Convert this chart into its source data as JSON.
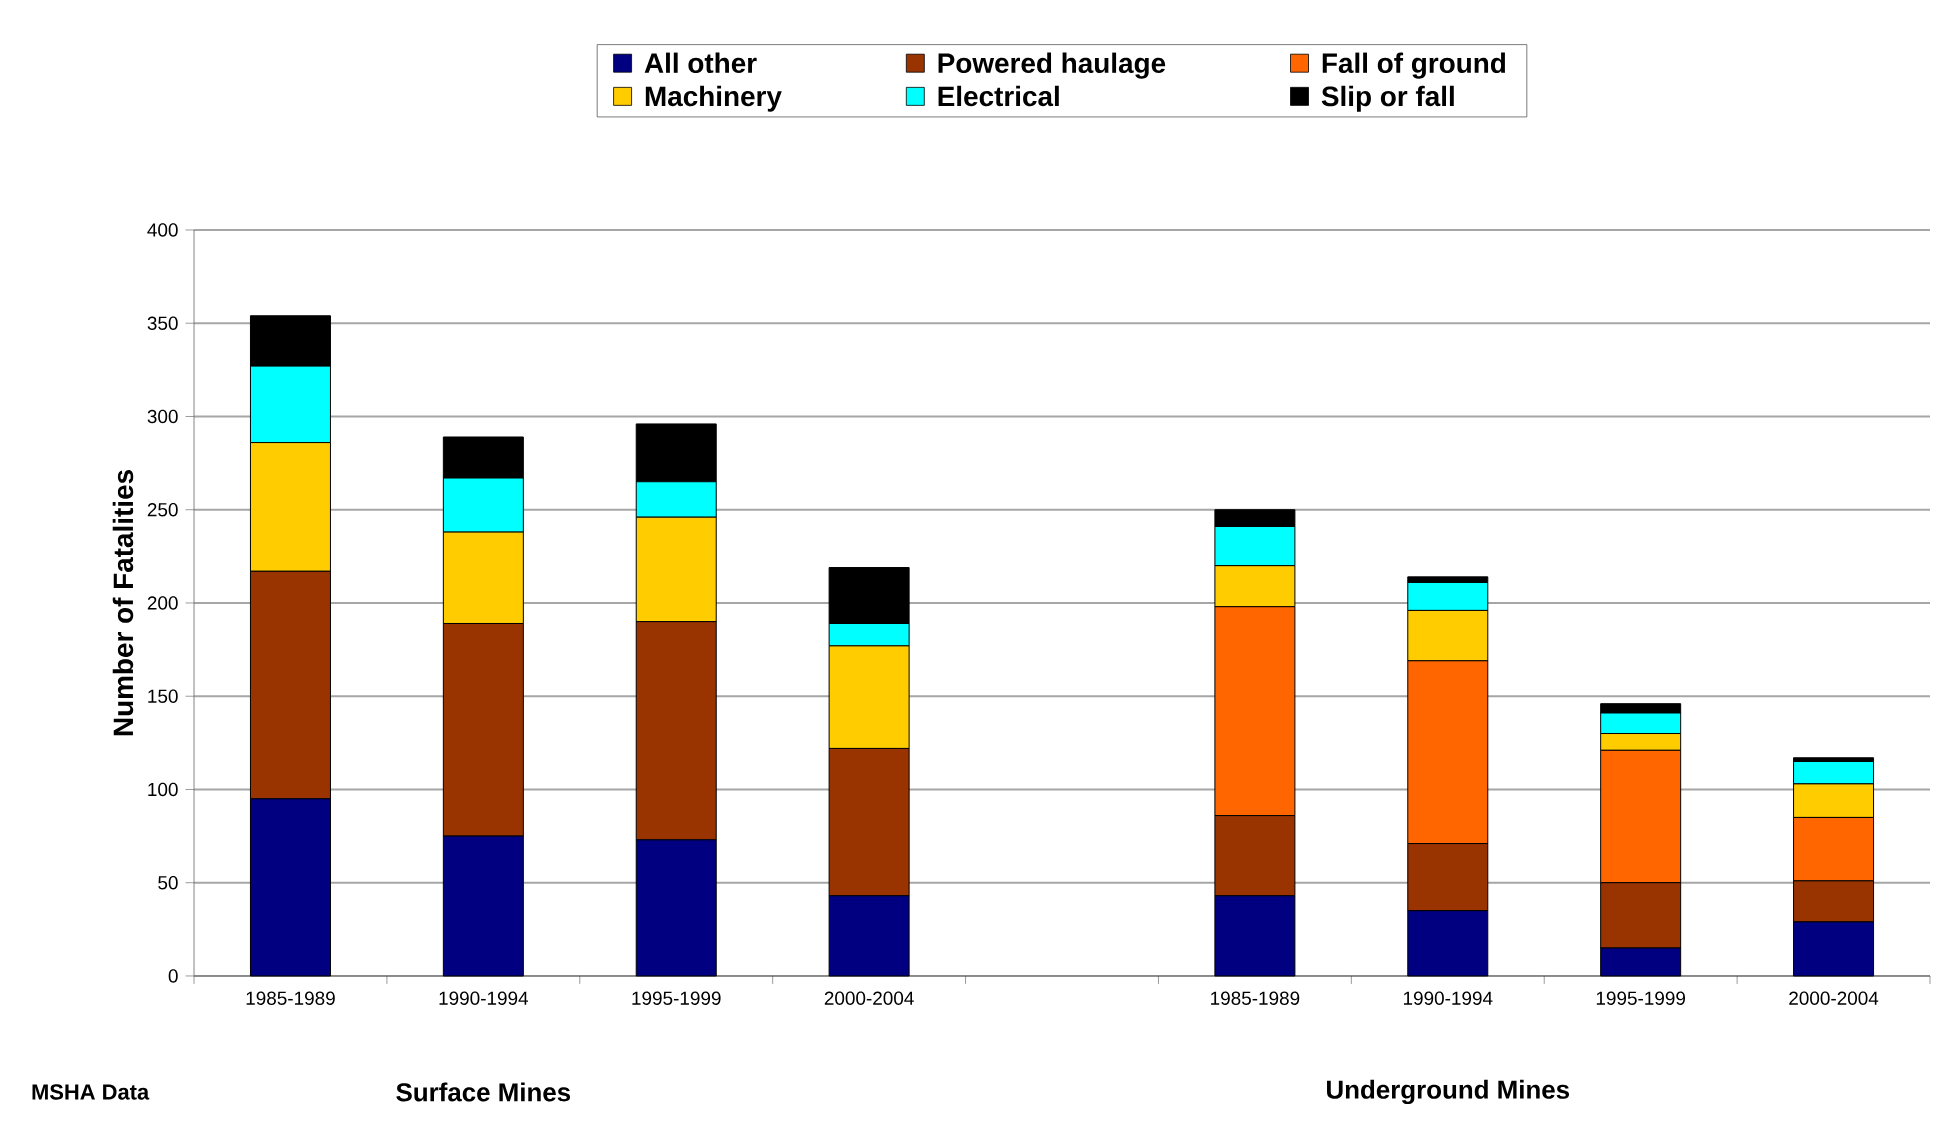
{
  "chart_data": {
    "type": "bar",
    "stacked": true,
    "ylabel": "Number of Fatalities",
    "categories": [
      "1985-1989",
      "1990-1994",
      "1995-1999",
      "2000-2004",
      null,
      "1985-1989",
      "1990-1994",
      "1995-1999",
      "2000-2004"
    ],
    "series": [
      {
        "name": "All other",
        "color": "#000080",
        "values": [
          95,
          75,
          73,
          43,
          null,
          43,
          35,
          15,
          29
        ]
      },
      {
        "name": "Powered haulage",
        "color": "#993300",
        "values": [
          122,
          114,
          117,
          79,
          null,
          43,
          36,
          35,
          22
        ]
      },
      {
        "name": "Fall of ground",
        "color": "#ff6600",
        "values": [
          0,
          0,
          0,
          0,
          null,
          112,
          98,
          71,
          34
        ]
      },
      {
        "name": "Machinery",
        "color": "#ffcc00",
        "values": [
          69,
          49,
          56,
          55,
          null,
          22,
          27,
          9,
          18
        ]
      },
      {
        "name": "Electrical",
        "color": "#00ffff",
        "values": [
          41,
          29,
          19,
          12,
          null,
          21,
          15,
          11,
          12
        ]
      },
      {
        "name": "Slip or fall",
        "color": "#000000",
        "values": [
          27,
          22,
          31,
          30,
          null,
          9,
          3,
          5,
          2
        ]
      }
    ],
    "ylim": [
      0,
      400
    ],
    "yticks": [
      0,
      50,
      100,
      150,
      200,
      250,
      300,
      350,
      400
    ],
    "grid": "y",
    "legend": "top",
    "annotations": [
      "MSHA Data",
      "Surface Mines",
      "Underground Mines"
    ]
  }
}
